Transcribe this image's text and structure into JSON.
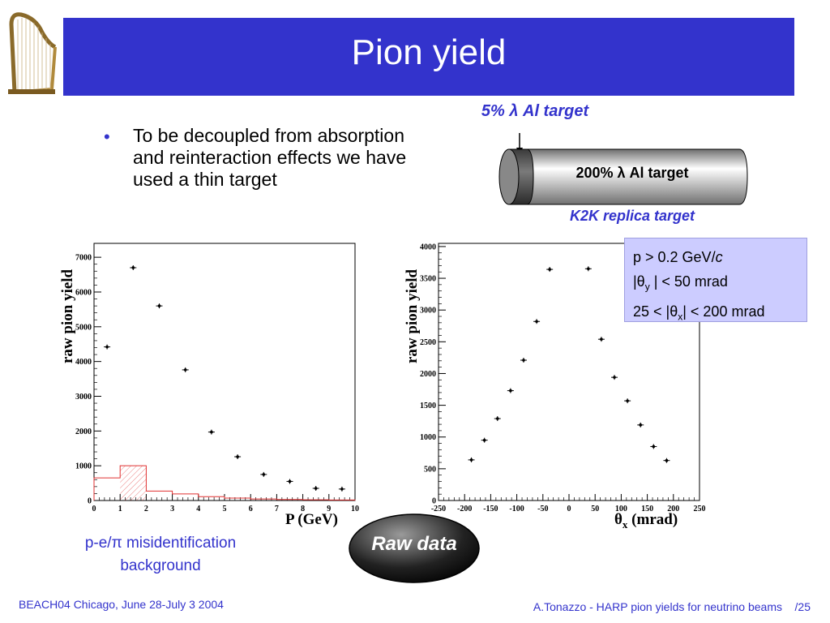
{
  "slide": {
    "title": "Pion yield",
    "bullet": "To be decoupled from absorption and reinteraction effects we have used a thin target",
    "thin_target": "5%  λ Al target",
    "thick_target": "200%  λ Al target",
    "replica_label": "K2K replica target",
    "cuts": [
      "p > 0.2 GeV/c",
      "|θy | < 50 mrad",
      "25 < |θx| < 200 mrad"
    ],
    "background_label_1": "p-e/π  misidentification",
    "background_label_2": "background",
    "raw_data": "Raw data",
    "footer_left": "BEACH04 Chicago, June 28-July 3 2004",
    "footer_right": "A.Tonazzo - HARP pion yields for neutrino beams    /25"
  },
  "colors": {
    "title_bg": "#3333cc",
    "accent": "#3333cc",
    "box_bg": "#ccccff",
    "histogram": "#e03030"
  },
  "chart_data": [
    {
      "type": "scatter",
      "xlabel": "P (GeV)",
      "ylabel": "raw pion yield",
      "xlim": [
        0,
        10
      ],
      "ylim": [
        0,
        7400
      ],
      "xticks": [
        0,
        1,
        2,
        3,
        4,
        5,
        6,
        7,
        8,
        9,
        10
      ],
      "yticks": [
        0,
        1000,
        2000,
        3000,
        4000,
        5000,
        6000,
        7000
      ],
      "series": [
        {
          "x": [
            0.5,
            1.5,
            2.5,
            3.5,
            4.5,
            5.5,
            6.5,
            7.5,
            8.5,
            9.5
          ],
          "y": [
            4420,
            6700,
            5600,
            3760,
            1970,
            1260,
            750,
            550,
            350,
            330
          ]
        }
      ],
      "background_histogram": {
        "edges": [
          0,
          1,
          2,
          3,
          4,
          5,
          6,
          7,
          8,
          9,
          10
        ],
        "values": [
          650,
          1000,
          270,
          190,
          110,
          70,
          45,
          30,
          20,
          15
        ]
      }
    },
    {
      "type": "scatter",
      "xlabel": "θx (mrad)",
      "ylabel": "raw pion yield",
      "xlim": [
        -250,
        250
      ],
      "ylim": [
        0,
        4050
      ],
      "xticks": [
        -250,
        -200,
        -150,
        -100,
        -50,
        0,
        50,
        100,
        150,
        200,
        250
      ],
      "yticks": [
        0,
        500,
        1000,
        1500,
        2000,
        2500,
        3000,
        3500,
        4000
      ],
      "series": [
        {
          "x": [
            -187,
            -162,
            -137,
            -112,
            -87,
            -62,
            -37,
            37,
            62,
            87,
            112,
            137,
            162,
            187
          ],
          "y": [
            640,
            950,
            1290,
            1730,
            2210,
            2820,
            3640,
            3650,
            2540,
            1940,
            1570,
            1190,
            850,
            630
          ]
        }
      ]
    }
  ]
}
